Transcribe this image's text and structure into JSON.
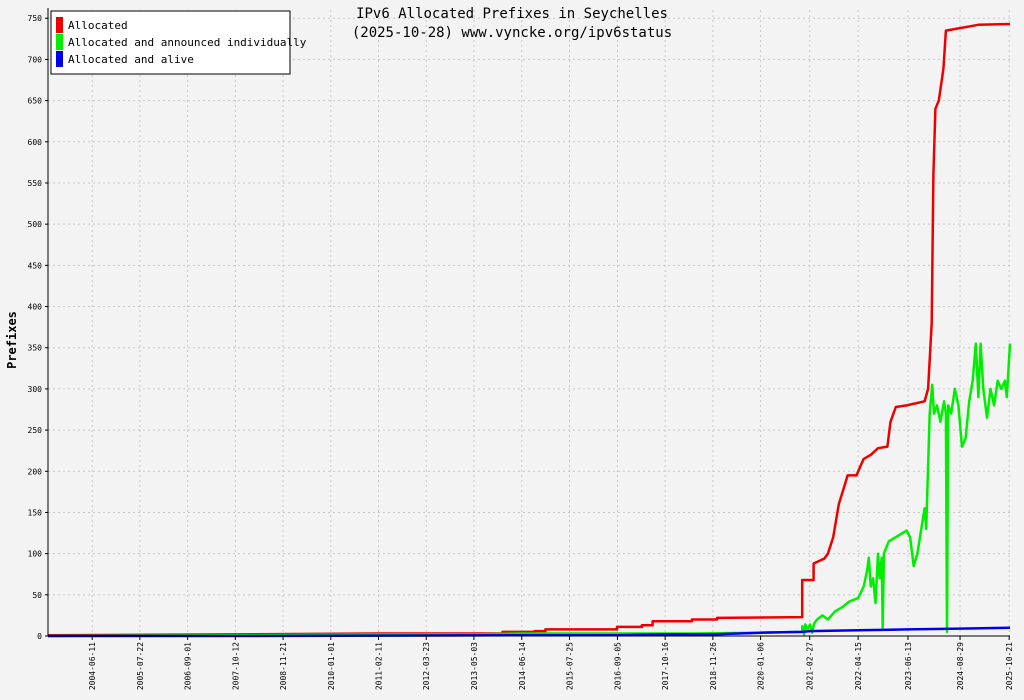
{
  "chart_data": {
    "type": "line",
    "title": "IPv6 Allocated Prefixes in Seychelles",
    "subtitle": "(2025-10-28) www.vyncke.org/ipv6status",
    "ylabel": "Prefixes",
    "xlabel": "",
    "ylim": [
      0,
      760
    ],
    "yticks": [
      0,
      50,
      100,
      150,
      200,
      250,
      300,
      350,
      400,
      450,
      500,
      550,
      600,
      650,
      700,
      750
    ],
    "xlim": [
      "2003-06-01",
      "2025-10-28"
    ],
    "xticks": [
      "2004-06-11",
      "2005-07-22",
      "2006-09-01",
      "2007-10-12",
      "2008-11-21",
      "2010-01-01",
      "2011-02-11",
      "2012-03-23",
      "2013-05-03",
      "2014-06-14",
      "2015-07-25",
      "2016-09-05",
      "2017-10-16",
      "2018-11-26",
      "2020-01-06",
      "2021-02-27",
      "2022-04-15",
      "2023-06-13",
      "2024-08-29",
      "2025-10-21"
    ],
    "grid": true,
    "legend_position": "top-left",
    "series": [
      {
        "name": "Allocated",
        "color": "#ee0000",
        "points": [
          [
            "2003-06-01",
            1
          ],
          [
            "2007-10-12",
            2
          ],
          [
            "2011-02-11",
            3
          ],
          [
            "2014-01-01",
            3
          ],
          [
            "2014-01-01",
            5
          ],
          [
            "2014-10-01",
            5
          ],
          [
            "2014-10-01",
            6
          ],
          [
            "2015-01-01",
            6
          ],
          [
            "2015-01-01",
            8
          ],
          [
            "2016-09-01",
            8
          ],
          [
            "2016-09-01",
            11
          ],
          [
            "2017-04-01",
            11
          ],
          [
            "2017-04-01",
            13
          ],
          [
            "2017-07-01",
            13
          ],
          [
            "2017-07-01",
            18
          ],
          [
            "2018-06-01",
            18
          ],
          [
            "2018-06-01",
            20
          ],
          [
            "2019-01-01",
            20
          ],
          [
            "2019-01-01",
            22
          ],
          [
            "2020-12-25",
            23
          ],
          [
            "2020-12-25",
            68
          ],
          [
            "2021-04-01",
            68
          ],
          [
            "2021-04-01",
            88
          ],
          [
            "2021-07-01",
            94
          ],
          [
            "2021-08-01",
            100
          ],
          [
            "2021-09-15",
            120
          ],
          [
            "2021-11-01",
            160
          ],
          [
            "2021-12-15",
            180
          ],
          [
            "2022-01-15",
            195
          ],
          [
            "2022-04-01",
            195
          ],
          [
            "2022-05-01",
            205
          ],
          [
            "2022-06-01",
            215
          ],
          [
            "2022-08-01",
            220
          ],
          [
            "2022-10-01",
            228
          ],
          [
            "2022-12-20",
            230
          ],
          [
            "2023-01-15",
            260
          ],
          [
            "2023-03-01",
            278
          ],
          [
            "2023-06-01",
            280
          ],
          [
            "2023-11-01",
            285
          ],
          [
            "2023-12-01",
            300
          ],
          [
            "2024-01-01",
            380
          ],
          [
            "2024-01-15",
            560
          ],
          [
            "2024-02-01",
            640
          ],
          [
            "2024-03-01",
            650
          ],
          [
            "2024-04-01",
            680
          ],
          [
            "2024-04-10",
            690
          ],
          [
            "2024-05-01",
            735
          ],
          [
            "2024-08-29",
            738
          ],
          [
            "2025-02-01",
            742
          ],
          [
            "2025-10-28",
            743
          ]
        ]
      },
      {
        "name": "Allocated and announced individually",
        "color": "#00ee00",
        "points": [
          [
            "2003-06-01",
            0
          ],
          [
            "2007-10-12",
            1
          ],
          [
            "2011-02-11",
            2
          ],
          [
            "2013-05-03",
            2
          ],
          [
            "2014-06-14",
            3
          ],
          [
            "2017-10-16",
            3
          ],
          [
            "2018-06-01",
            3
          ],
          [
            "2020-01-06",
            4
          ],
          [
            "2020-12-25",
            5
          ],
          [
            "2020-12-26",
            12
          ],
          [
            "2021-01-10",
            2
          ],
          [
            "2021-01-20",
            14
          ],
          [
            "2021-02-10",
            8
          ],
          [
            "2021-03-01",
            14
          ],
          [
            "2021-03-20",
            4
          ],
          [
            "2021-04-05",
            15
          ],
          [
            "2021-05-01",
            20
          ],
          [
            "2021-06-15",
            25
          ],
          [
            "2021-08-01",
            20
          ],
          [
            "2021-10-01",
            30
          ],
          [
            "2021-12-01",
            35
          ],
          [
            "2022-02-01",
            42
          ],
          [
            "2022-04-15",
            46
          ],
          [
            "2022-06-01",
            60
          ],
          [
            "2022-07-01",
            80
          ],
          [
            "2022-07-15",
            95
          ],
          [
            "2022-08-01",
            60
          ],
          [
            "2022-08-20",
            70
          ],
          [
            "2022-09-10",
            40
          ],
          [
            "2022-10-01",
            100
          ],
          [
            "2022-10-15",
            70
          ],
          [
            "2022-11-01",
            95
          ],
          [
            "2022-11-10",
            10
          ],
          [
            "2022-11-20",
            100
          ],
          [
            "2023-01-01",
            115
          ],
          [
            "2023-03-01",
            120
          ],
          [
            "2023-06-01",
            128
          ],
          [
            "2023-07-01",
            120
          ],
          [
            "2023-08-01",
            85
          ],
          [
            "2023-09-01",
            100
          ],
          [
            "2023-10-15",
            140
          ],
          [
            "2023-11-01",
            155
          ],
          [
            "2023-11-15",
            130
          ],
          [
            "2023-12-15",
            270
          ],
          [
            "2024-01-05",
            305
          ],
          [
            "2024-01-20",
            270
          ],
          [
            "2024-02-15",
            280
          ],
          [
            "2024-03-15",
            260
          ],
          [
            "2024-04-15",
            285
          ],
          [
            "2024-05-01",
            270
          ],
          [
            "2024-05-10",
            5
          ],
          [
            "2024-05-20",
            280
          ],
          [
            "2024-06-15",
            270
          ],
          [
            "2024-07-15",
            300
          ],
          [
            "2024-08-15",
            280
          ],
          [
            "2024-09-15",
            230
          ],
          [
            "2024-10-15",
            240
          ],
          [
            "2024-11-15",
            285
          ],
          [
            "2024-12-15",
            310
          ],
          [
            "2025-01-10",
            355
          ],
          [
            "2025-02-01",
            290
          ],
          [
            "2025-02-20",
            355
          ],
          [
            "2025-03-15",
            300
          ],
          [
            "2025-04-15",
            265
          ],
          [
            "2025-05-15",
            300
          ],
          [
            "2025-06-15",
            280
          ],
          [
            "2025-07-15",
            310
          ],
          [
            "2025-08-15",
            300
          ],
          [
            "2025-09-15",
            310
          ],
          [
            "2025-10-01",
            290
          ],
          [
            "2025-10-28",
            355
          ]
        ]
      },
      {
        "name": "Allocated and alive",
        "color": "#0000ee",
        "points": [
          [
            "2003-06-01",
            0
          ],
          [
            "2007-10-12",
            0
          ],
          [
            "2014-06-14",
            1
          ],
          [
            "2016-09-05",
            1
          ],
          [
            "2017-10-16",
            2
          ],
          [
            "2018-11-26",
            2
          ],
          [
            "2020-01-06",
            4
          ],
          [
            "2020-12-25",
            5
          ],
          [
            "2021-02-27",
            6
          ],
          [
            "2022-04-15",
            7
          ],
          [
            "2023-06-13",
            8
          ],
          [
            "2024-08-29",
            9
          ],
          [
            "2025-10-28",
            10
          ]
        ]
      }
    ]
  }
}
